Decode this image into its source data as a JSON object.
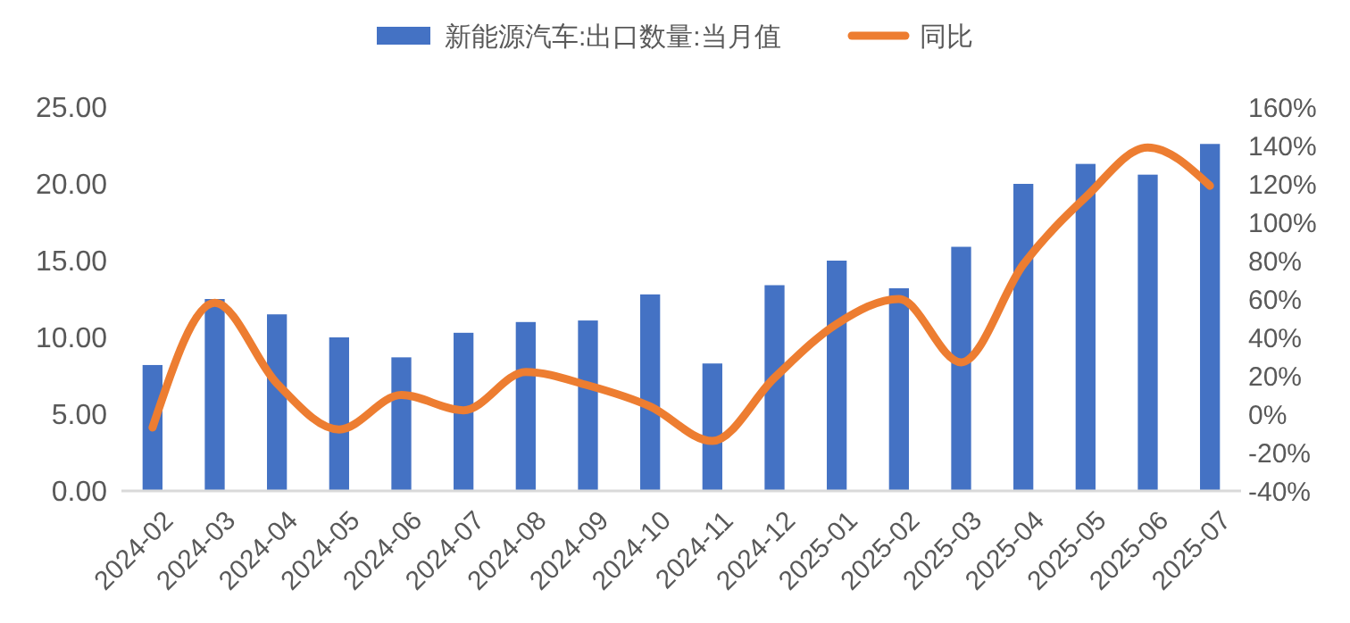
{
  "chart_data": {
    "type": "bar",
    "categories": [
      "2024-02",
      "2024-03",
      "2024-04",
      "2024-05",
      "2024-06",
      "2024-07",
      "2024-08",
      "2024-09",
      "2024-10",
      "2024-11",
      "2024-12",
      "2025-01",
      "2025-02",
      "2025-03",
      "2025-04",
      "2025-05",
      "2025-06",
      "2025-07"
    ],
    "series": [
      {
        "name": "新能源汽车:出口数量:当月值",
        "color": "#4472c4",
        "values": [
          8.2,
          12.5,
          11.5,
          10.0,
          8.7,
          10.3,
          11.0,
          11.1,
          12.8,
          8.3,
          13.4,
          15.0,
          13.2,
          15.9,
          20.0,
          21.3,
          20.6,
          22.6
        ]
      },
      {
        "name": "同比",
        "color": "#ed7d31",
        "type": "line",
        "axis": "y2",
        "values": [
          -7,
          58,
          16,
          -8,
          10,
          2,
          22,
          15,
          4,
          -14,
          19,
          47,
          60,
          27,
          78,
          113,
          139,
          119
        ]
      }
    ],
    "ylim": [
      0,
      25
    ],
    "yticks": [
      {
        "value": 0,
        "label": "0.00"
      },
      {
        "value": 5,
        "label": "5.00"
      },
      {
        "value": 10,
        "label": "10.00"
      },
      {
        "value": 15,
        "label": "15.00"
      },
      {
        "value": 20,
        "label": "20.00"
      },
      {
        "value": 25,
        "label": "25.00"
      }
    ],
    "y2lim": [
      -40,
      160
    ],
    "y2ticks": [
      {
        "value": -40,
        "label": "-40%"
      },
      {
        "value": -20,
        "label": "-20%"
      },
      {
        "value": 0,
        "label": "0%"
      },
      {
        "value": 20,
        "label": "20%"
      },
      {
        "value": 40,
        "label": "40%"
      },
      {
        "value": 60,
        "label": "60%"
      },
      {
        "value": 80,
        "label": "80%"
      },
      {
        "value": 100,
        "label": "100%"
      },
      {
        "value": 120,
        "label": "120%"
      },
      {
        "value": 140,
        "label": "140%"
      },
      {
        "value": 160,
        "label": "160%"
      }
    ],
    "grid": false,
    "legend": "top",
    "marker": "none",
    "line_style": "solid"
  }
}
